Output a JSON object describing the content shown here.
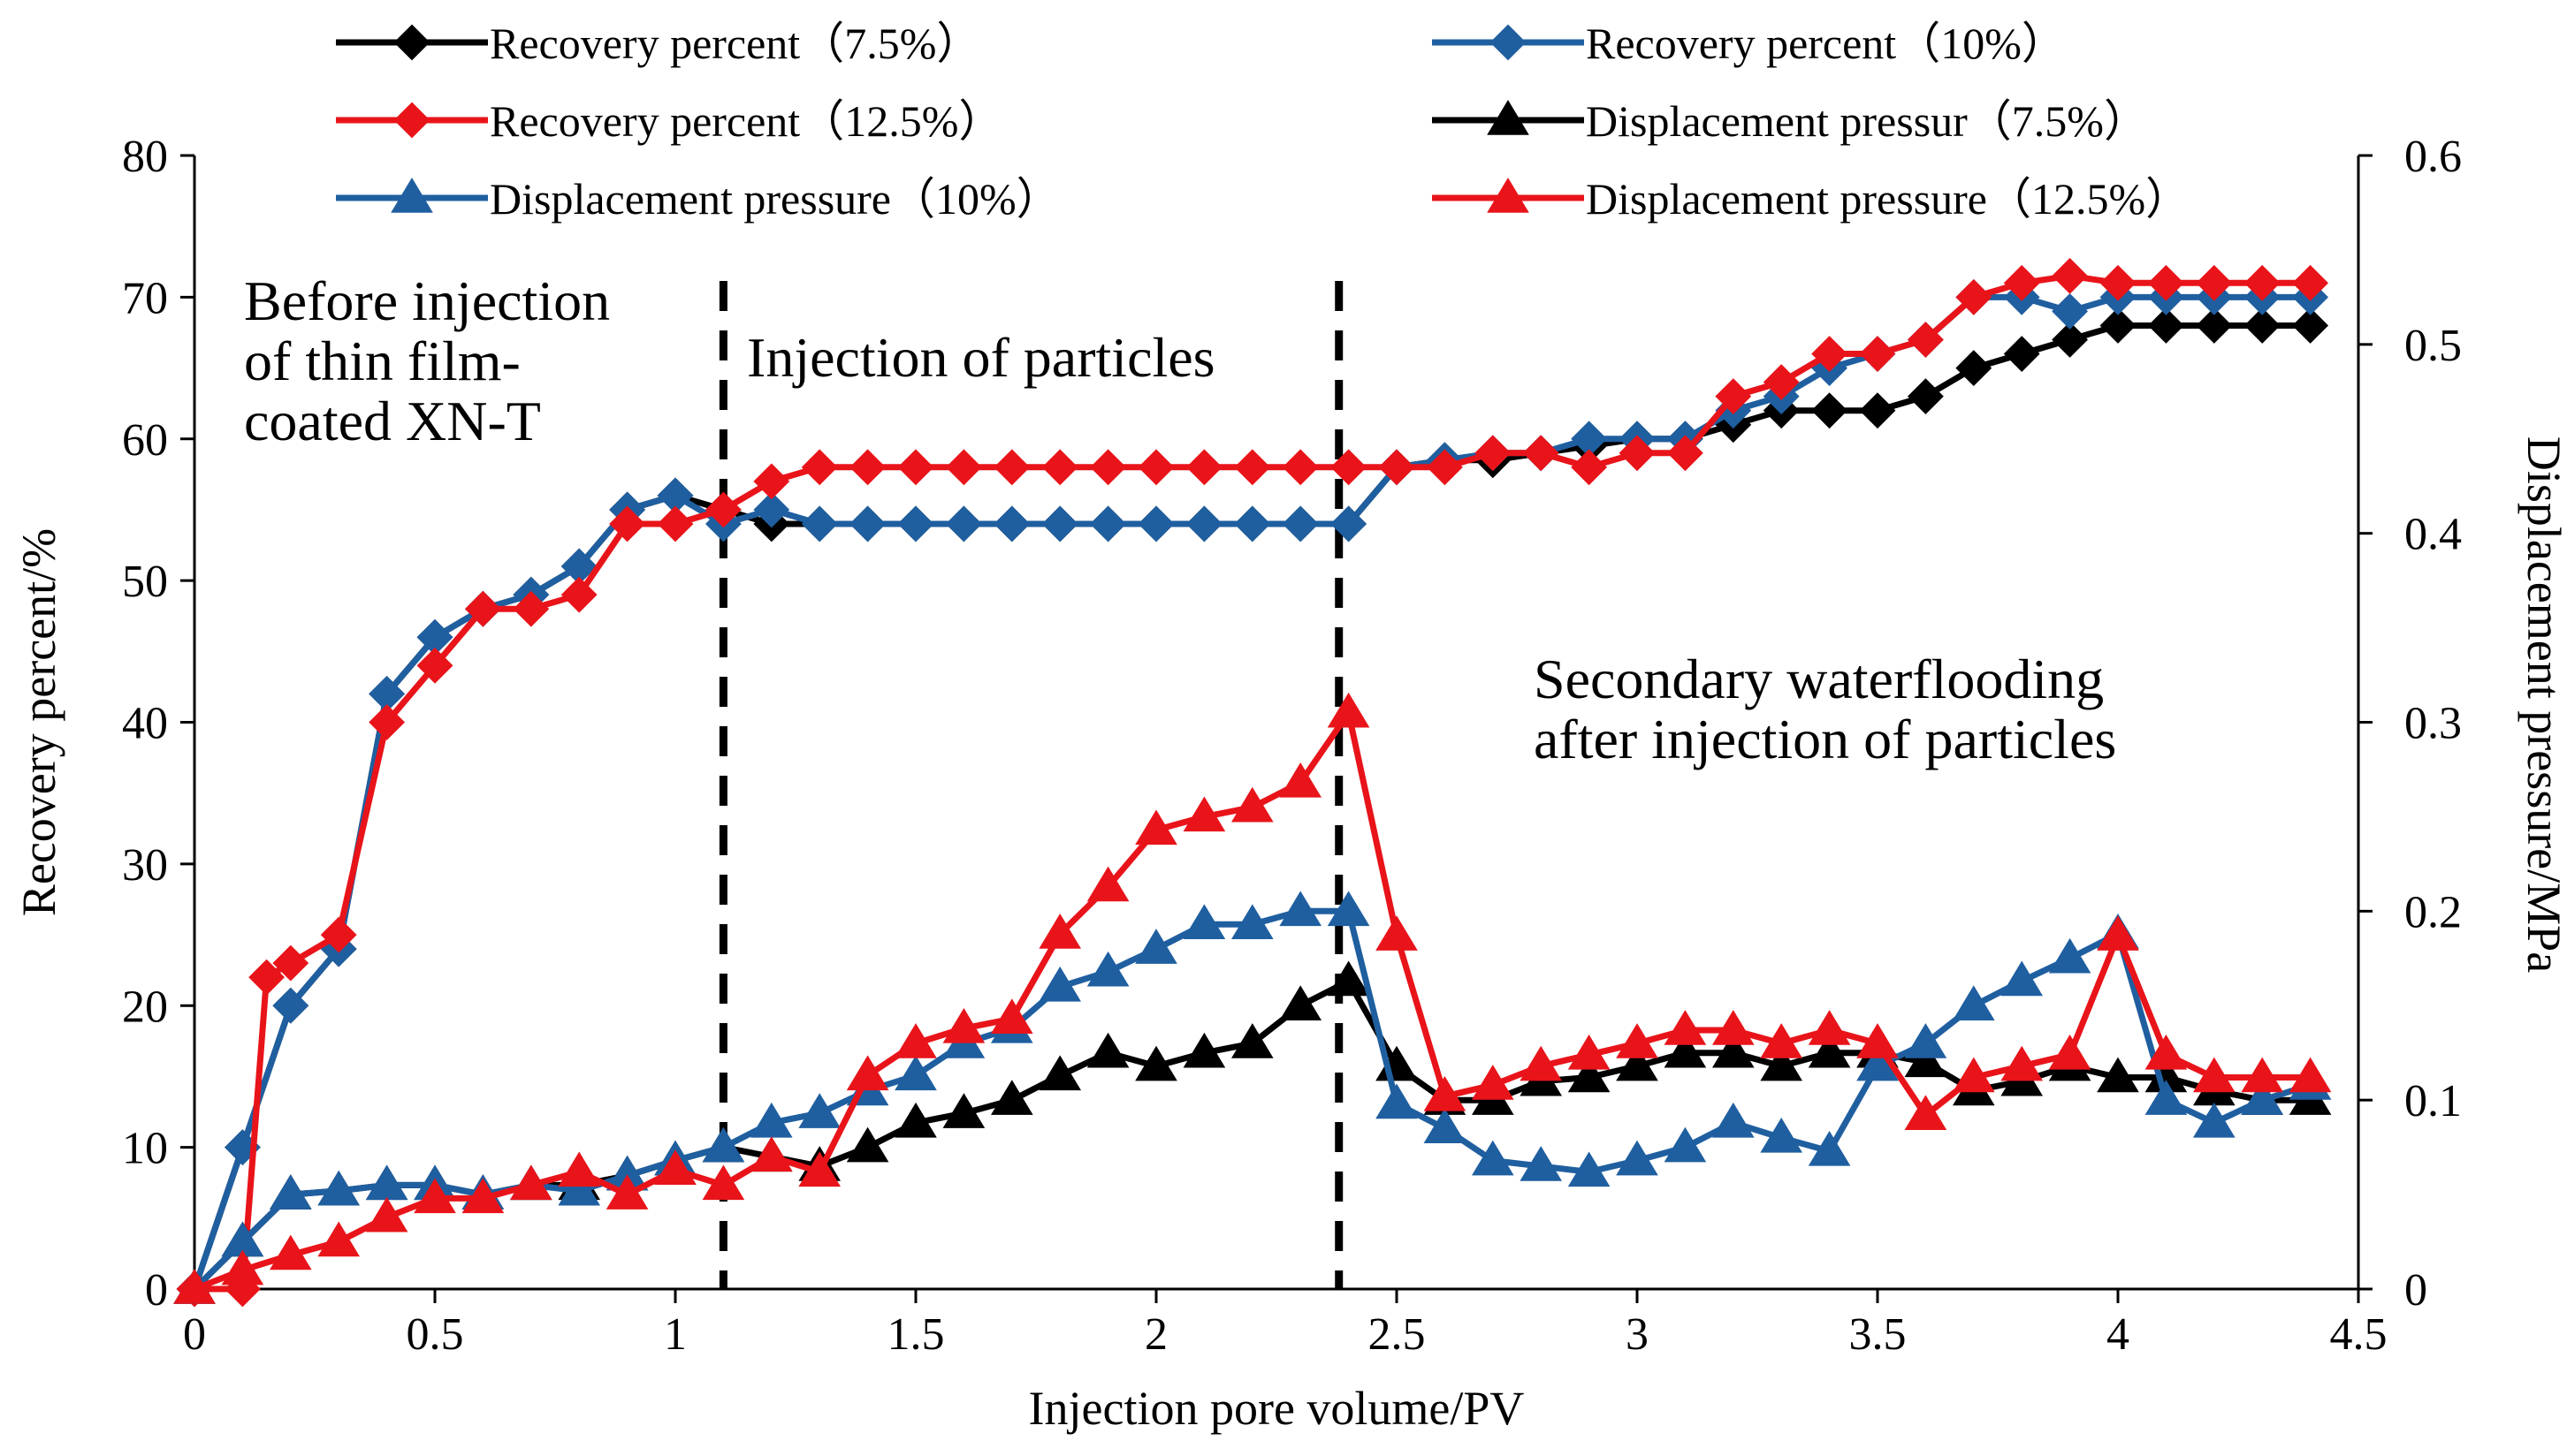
{
  "chart_data": {
    "type": "line",
    "title": "",
    "xlabel": "Injection pore volume/PV",
    "ylabel": "Recovery percent/%",
    "y2label": "Displacement pressure/MPa",
    "xlim": [
      0,
      4.5
    ],
    "ylim": [
      0,
      80
    ],
    "y2lim": [
      0,
      0.6
    ],
    "x_ticks": [
      "0",
      "0.5",
      "1",
      "1.5",
      "2",
      "2.5",
      "3",
      "3.5",
      "4",
      "4.5"
    ],
    "y_ticks": [
      "0",
      "10",
      "20",
      "30",
      "40",
      "50",
      "60",
      "70",
      "80"
    ],
    "y2_ticks": [
      "0",
      "0.1",
      "0.2",
      "0.3",
      "0.4",
      "0.5",
      "0.6"
    ],
    "grid": false,
    "legend_position": "top",
    "dividers_x": [
      1.1,
      2.38
    ],
    "annotations": [
      {
        "lines": [
          "Before injection",
          "of thin film-",
          "coated  XN-T"
        ]
      },
      {
        "lines": [
          "Injection of particles"
        ]
      },
      {
        "lines": [
          "Secondary waterflooding",
          "after injection of particles"
        ]
      }
    ],
    "series": [
      {
        "name": "Recovery percent（7.5%）",
        "axis": "left",
        "marker": "diamond",
        "color": "#000000",
        "x": [
          0,
          0.1,
          0.2,
          0.3,
          0.4,
          0.5,
          0.6,
          0.7,
          0.8,
          0.9,
          1.0,
          1.1,
          1.2,
          1.3,
          1.4,
          1.5,
          1.6,
          1.7,
          1.8,
          1.9,
          2.0,
          2.1,
          2.2,
          2.3,
          2.4,
          2.5,
          2.6,
          2.7,
          2.8,
          2.9,
          3.0,
          3.1,
          3.2,
          3.3,
          3.4,
          3.5,
          3.6,
          3.7,
          3.8,
          3.9,
          4.0,
          4.1,
          4.2,
          4.3,
          4.4
        ],
        "values": [
          0,
          10,
          20,
          24,
          42,
          46,
          48,
          49,
          51,
          55,
          56,
          55,
          54,
          54,
          54,
          54,
          54,
          54,
          54,
          54,
          54,
          54,
          54,
          54,
          54,
          58,
          58.5,
          58.5,
          59,
          59.5,
          60,
          60,
          61,
          62,
          62,
          62,
          63,
          65,
          66,
          67,
          68,
          68,
          68,
          68,
          68
        ]
      },
      {
        "name": "Recovery percent（10%）",
        "axis": "left",
        "marker": "diamond",
        "color": "#1f5fa0",
        "x": [
          0,
          0.1,
          0.2,
          0.3,
          0.4,
          0.5,
          0.6,
          0.7,
          0.8,
          0.9,
          1.0,
          1.1,
          1.2,
          1.3,
          1.4,
          1.5,
          1.6,
          1.7,
          1.8,
          1.9,
          2.0,
          2.1,
          2.2,
          2.3,
          2.4,
          2.5,
          2.6,
          2.7,
          2.8,
          2.9,
          3.0,
          3.1,
          3.2,
          3.3,
          3.4,
          3.5,
          3.6,
          3.7,
          3.8,
          3.9,
          4.0,
          4.1,
          4.2,
          4.3,
          4.4
        ],
        "values": [
          0,
          10,
          20,
          24,
          42,
          46,
          48,
          49,
          51,
          55,
          56,
          54,
          55,
          54,
          54,
          54,
          54,
          54,
          54,
          54,
          54,
          54,
          54,
          54,
          54,
          58,
          58.5,
          59,
          59,
          60,
          60,
          60,
          62,
          63,
          65,
          66,
          67,
          70,
          70,
          69,
          70,
          70,
          70,
          70,
          70
        ]
      },
      {
        "name": "Recovery percent（12.5%）",
        "axis": "left",
        "marker": "diamond",
        "color": "#e8141a",
        "x": [
          0,
          0.1,
          0.15,
          0.2,
          0.3,
          0.4,
          0.5,
          0.6,
          0.7,
          0.8,
          0.9,
          1.0,
          1.1,
          1.2,
          1.3,
          1.4,
          1.5,
          1.6,
          1.7,
          1.8,
          1.9,
          2.0,
          2.1,
          2.2,
          2.3,
          2.4,
          2.5,
          2.6,
          2.7,
          2.8,
          2.9,
          3.0,
          3.1,
          3.2,
          3.3,
          3.4,
          3.5,
          3.6,
          3.7,
          3.8,
          3.9,
          4.0,
          4.1,
          4.2,
          4.3,
          4.4
        ],
        "values": [
          0,
          0,
          22,
          23,
          25,
          40,
          44,
          48,
          48,
          49,
          54,
          54,
          55,
          57,
          58,
          58,
          58,
          58,
          58,
          58,
          58,
          58,
          58,
          58,
          58,
          58,
          58,
          58,
          59,
          59,
          58,
          59,
          59,
          63,
          64,
          66,
          66,
          67,
          70,
          71,
          71.5,
          71,
          71,
          71,
          71,
          71
        ]
      },
      {
        "name": "Displacement pressur（7.5%）",
        "axis": "right",
        "marker": "triangle",
        "color": "#000000",
        "x": [
          0,
          0.1,
          0.2,
          0.3,
          0.4,
          0.5,
          0.6,
          0.7,
          0.8,
          0.9,
          1.0,
          1.1,
          1.2,
          1.3,
          1.4,
          1.5,
          1.6,
          1.7,
          1.8,
          1.9,
          2.0,
          2.1,
          2.2,
          2.3,
          2.4,
          2.5,
          2.6,
          2.7,
          2.8,
          2.9,
          3.0,
          3.1,
          3.2,
          3.3,
          3.4,
          3.5,
          3.6,
          3.7,
          3.8,
          3.9,
          4.0,
          4.1,
          4.2,
          4.3,
          4.4
        ],
        "values": [
          0,
          0.025,
          0.05,
          0.052,
          0.055,
          0.055,
          0.05,
          0.055,
          0.055,
          0.06,
          0.068,
          0.075,
          0.07,
          0.065,
          0.075,
          0.088,
          0.093,
          0.1,
          0.113,
          0.125,
          0.118,
          0.125,
          0.13,
          0.15,
          0.163,
          0.118,
          0.1,
          0.1,
          0.11,
          0.112,
          0.118,
          0.125,
          0.125,
          0.118,
          0.125,
          0.125,
          0.12,
          0.105,
          0.11,
          0.118,
          0.112,
          0.112,
          0.105,
          0.1,
          0.1
        ]
      },
      {
        "name": "Displacement pressure（10%）",
        "axis": "right",
        "marker": "triangle",
        "color": "#1f5fa0",
        "x": [
          0,
          0.1,
          0.2,
          0.3,
          0.4,
          0.5,
          0.6,
          0.7,
          0.8,
          0.9,
          1.0,
          1.1,
          1.2,
          1.3,
          1.4,
          1.5,
          1.6,
          1.7,
          1.8,
          1.9,
          2.0,
          2.1,
          2.2,
          2.3,
          2.4,
          2.5,
          2.6,
          2.7,
          2.8,
          2.9,
          3.0,
          3.1,
          3.2,
          3.3,
          3.4,
          3.5,
          3.6,
          3.7,
          3.8,
          3.9,
          4.0,
          4.1,
          4.2,
          4.3,
          4.4
        ],
        "values": [
          0,
          0.025,
          0.05,
          0.052,
          0.055,
          0.055,
          0.05,
          0.055,
          0.052,
          0.06,
          0.068,
          0.075,
          0.088,
          0.093,
          0.105,
          0.113,
          0.13,
          0.138,
          0.16,
          0.168,
          0.18,
          0.193,
          0.193,
          0.2,
          0.2,
          0.098,
          0.085,
          0.068,
          0.065,
          0.062,
          0.068,
          0.075,
          0.088,
          0.08,
          0.073,
          0.118,
          0.13,
          0.15,
          0.163,
          0.175,
          0.188,
          0.1,
          0.088,
          0.1,
          0.108
        ]
      },
      {
        "name": "Displacement pressure（12.5%）",
        "axis": "right",
        "marker": "triangle",
        "color": "#e8141a",
        "x": [
          0,
          0.1,
          0.2,
          0.3,
          0.4,
          0.5,
          0.6,
          0.7,
          0.8,
          0.9,
          1.0,
          1.1,
          1.2,
          1.3,
          1.4,
          1.5,
          1.6,
          1.7,
          1.8,
          1.9,
          2.0,
          2.1,
          2.2,
          2.3,
          2.4,
          2.5,
          2.6,
          2.7,
          2.8,
          2.9,
          3.0,
          3.1,
          3.2,
          3.3,
          3.4,
          3.5,
          3.6,
          3.7,
          3.8,
          3.9,
          4.0,
          4.1,
          4.2,
          4.3,
          4.4
        ],
        "values": [
          0,
          0.01,
          0.018,
          0.025,
          0.038,
          0.048,
          0.048,
          0.055,
          0.062,
          0.05,
          0.063,
          0.055,
          0.07,
          0.062,
          0.113,
          0.13,
          0.138,
          0.143,
          0.188,
          0.213,
          0.243,
          0.25,
          0.255,
          0.268,
          0.305,
          0.187,
          0.102,
          0.108,
          0.118,
          0.124,
          0.13,
          0.137,
          0.137,
          0.13,
          0.137,
          0.13,
          0.092,
          0.112,
          0.118,
          0.124,
          0.187,
          0.124,
          0.112,
          0.112,
          0.112
        ]
      }
    ]
  }
}
